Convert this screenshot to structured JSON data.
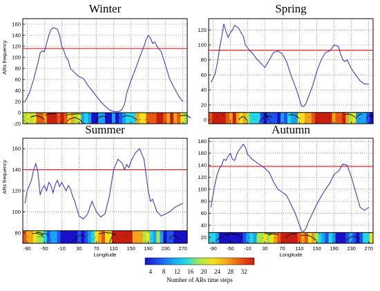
{
  "colors": {
    "line": "#3a3ac8",
    "threshold": "#e02020",
    "grid": "#555555",
    "frame": "#000000",
    "colorbar": [
      "#1a10c8",
      "#1f55ee",
      "#1aa3f0",
      "#22d8e8",
      "#a6e84a",
      "#f4e21c",
      "#f3a418",
      "#e85a12",
      "#c81e10"
    ]
  },
  "colorbar": {
    "ticks": [
      "4",
      "8",
      "12",
      "16",
      "20",
      "24",
      "28",
      "32"
    ],
    "label": "Number of ARs time steps"
  },
  "chart_data": [
    {
      "type": "line",
      "title": "Winter",
      "xlabel": "",
      "ylabel": "ARs frequency",
      "xlim": [
        -100,
        280
      ],
      "ylim": [
        -20,
        170
      ],
      "yticks": [
        -20,
        0,
        20,
        40,
        60,
        80,
        100,
        120,
        140,
        160
      ],
      "xticks": [
        -90,
        -50,
        -10,
        30,
        70,
        110,
        150,
        190,
        230,
        270
      ],
      "xtick_labels": [],
      "threshold": 116,
      "strip_ylim": [
        -20,
        0
      ],
      "series": [
        {
          "x": [
            -95,
            -85,
            -75,
            -65,
            -60,
            -55,
            -50,
            -45,
            -40,
            -35,
            -30,
            -25,
            -20,
            -15,
            -10,
            -5,
            0,
            5,
            10,
            20,
            30,
            40,
            50,
            60,
            70,
            80,
            90,
            100,
            110,
            120,
            125,
            130,
            135,
            140,
            150,
            160,
            170,
            180,
            185,
            190,
            195,
            200,
            205,
            210,
            220,
            230,
            240,
            250,
            260,
            270
          ],
          "y": [
            20,
            35,
            60,
            90,
            108,
            112,
            110,
            125,
            140,
            150,
            154,
            152,
            151,
            140,
            120,
            112,
            100,
            95,
            80,
            72,
            65,
            62,
            50,
            40,
            30,
            20,
            12,
            5,
            2,
            2,
            3,
            7,
            15,
            35,
            58,
            78,
            100,
            120,
            132,
            140,
            135,
            125,
            128,
            120,
            110,
            85,
            60,
            45,
            30,
            20
          ]
        }
      ]
    },
    {
      "type": "line",
      "title": "Spring",
      "xlabel": "",
      "ylabel": "",
      "xlim": [
        -100,
        280
      ],
      "ylim": [
        -5,
        135
      ],
      "yticks": [
        0,
        20,
        40,
        60,
        80,
        100,
        120
      ],
      "xticks": [
        -90,
        -50,
        -10,
        30,
        70,
        110,
        150,
        190,
        230,
        270
      ],
      "xtick_labels": [],
      "threshold": 93,
      "strip_ylim": [
        -5,
        10
      ],
      "series": [
        {
          "x": [
            -95,
            -90,
            -85,
            -80,
            -75,
            -70,
            -65,
            -60,
            -55,
            -50,
            -45,
            -40,
            -35,
            -30,
            -25,
            -20,
            -15,
            -10,
            -5,
            0,
            10,
            20,
            30,
            40,
            50,
            60,
            70,
            80,
            90,
            100,
            110,
            115,
            120,
            125,
            130,
            140,
            150,
            160,
            170,
            180,
            190,
            200,
            205,
            210,
            215,
            220,
            230,
            240,
            250,
            260,
            270
          ],
          "y": [
            50,
            55,
            62,
            75,
            95,
            110,
            128,
            118,
            110,
            116,
            120,
            126,
            124,
            122,
            116,
            112,
            100,
            96,
            92,
            90,
            82,
            76,
            70,
            80,
            90,
            92,
            88,
            78,
            60,
            45,
            28,
            18,
            18,
            22,
            30,
            45,
            65,
            80,
            90,
            92,
            100,
            98,
            88,
            80,
            78,
            80,
            68,
            60,
            52,
            48,
            48
          ]
        }
      ]
    },
    {
      "type": "line",
      "title": "Summer",
      "xlabel": "Longitude",
      "ylabel": "ARs frequency",
      "xlim": [
        -100,
        280
      ],
      "ylim": [
        70,
        170
      ],
      "yticks": [
        80,
        100,
        120,
        140,
        160
      ],
      "xticks": [
        -90,
        -50,
        -10,
        30,
        70,
        110,
        150,
        190,
        230,
        270
      ],
      "xtick_labels": [
        "-90",
        "-50",
        "-10",
        "30",
        "70",
        "110",
        "150",
        "190",
        "230",
        "270"
      ],
      "threshold": 140,
      "strip_ylim": [
        70,
        82
      ],
      "series": [
        {
          "x": [
            -95,
            -90,
            -85,
            -80,
            -75,
            -70,
            -65,
            -60,
            -55,
            -50,
            -45,
            -40,
            -35,
            -30,
            -25,
            -20,
            -15,
            -10,
            -5,
            0,
            5,
            10,
            15,
            20,
            30,
            40,
            50,
            60,
            70,
            80,
            90,
            100,
            110,
            120,
            130,
            135,
            140,
            145,
            150,
            160,
            170,
            180,
            185,
            190,
            195,
            200,
            210,
            220,
            230,
            240,
            250,
            260,
            270
          ],
          "y": [
            108,
            120,
            125,
            130,
            140,
            146,
            138,
            116,
            122,
            125,
            120,
            128,
            125,
            118,
            126,
            130,
            124,
            128,
            124,
            120,
            125,
            122,
            115,
            110,
            96,
            93,
            98,
            110,
            100,
            95,
            98,
            115,
            140,
            150,
            146,
            140,
            145,
            142,
            148,
            156,
            160,
            150,
            135,
            120,
            110,
            112,
            100,
            96,
            98,
            100,
            104,
            106,
            108
          ]
        }
      ]
    },
    {
      "type": "line",
      "title": "Autumn",
      "xlabel": "Longitude",
      "ylabel": "",
      "xlim": [
        -100,
        280
      ],
      "ylim": [
        10,
        185
      ],
      "yticks": [
        20,
        40,
        60,
        80,
        100,
        120,
        140,
        160,
        180
      ],
      "xticks": [
        -90,
        -50,
        -10,
        30,
        70,
        110,
        150,
        190,
        230,
        270
      ],
      "xtick_labels": [
        "-90",
        "-50",
        "-10",
        "30",
        "70",
        "110",
        "150",
        "190",
        "230",
        "270"
      ],
      "threshold": 138,
      "strip_ylim": [
        10,
        28
      ],
      "series": [
        {
          "x": [
            -95,
            -90,
            -85,
            -80,
            -75,
            -70,
            -65,
            -60,
            -55,
            -50,
            -45,
            -40,
            -35,
            -30,
            -25,
            -20,
            -15,
            -10,
            -5,
            0,
            5,
            10,
            20,
            30,
            40,
            50,
            60,
            70,
            80,
            90,
            100,
            110,
            115,
            120,
            125,
            130,
            140,
            150,
            160,
            170,
            180,
            190,
            200,
            210,
            220,
            230,
            240,
            250,
            260,
            270
          ],
          "y": [
            70,
            90,
            110,
            125,
            135,
            140,
            150,
            148,
            155,
            160,
            150,
            148,
            158,
            165,
            170,
            175,
            170,
            158,
            155,
            150,
            148,
            145,
            140,
            135,
            128,
            112,
            100,
            95,
            90,
            75,
            60,
            40,
            30,
            30,
            35,
            45,
            60,
            75,
            88,
            100,
            110,
            125,
            130,
            142,
            140,
            120,
            95,
            70,
            65,
            70
          ]
        }
      ]
    }
  ]
}
